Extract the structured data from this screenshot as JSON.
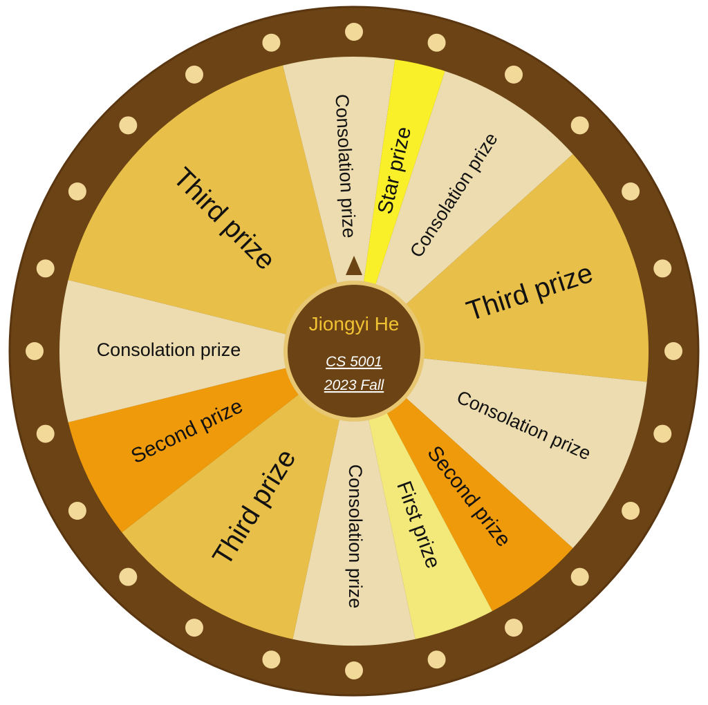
{
  "wheel": {
    "colors": {
      "rim": "#6b4315",
      "rim_edge": "#5a3610",
      "bulb": "#f2d99a",
      "hub": "#6b4315",
      "hub_ring": "#e8c772",
      "hub_name": "#f1c232",
      "hub_sub": "#ffffff",
      "pointer": "#6b4315",
      "label_text": "#111111"
    },
    "segments": [
      {
        "label": "Consolation prize",
        "color": "#ecdcb0",
        "icon": "none",
        "text_size": "small"
      },
      {
        "label": "Star prize",
        "color": "#f9f02a",
        "icon": "none",
        "text_size": "medium"
      },
      {
        "label": "Consolation prize",
        "color": "#ecdcb0",
        "icon": "none",
        "text_size": "small"
      },
      {
        "label": "Third prize",
        "color": "#e8bf48",
        "icon": "none",
        "text_size": "large"
      },
      {
        "label": "Consolation prize",
        "color": "#ecdcb0",
        "icon": "none",
        "text_size": "small"
      },
      {
        "label": "Second prize",
        "color": "#ef9a0a",
        "icon": "none",
        "text_size": "medium"
      },
      {
        "label": "First prize",
        "color": "#f2e97a",
        "icon": "none",
        "text_size": "medium"
      },
      {
        "label": "Consolation prize",
        "color": "#ecdcb0",
        "icon": "none",
        "text_size": "small"
      },
      {
        "label": "Third prize",
        "color": "#e8bf48",
        "icon": "none",
        "text_size": "large"
      },
      {
        "label": "Second prize",
        "color": "#ef9a0a",
        "icon": "none",
        "text_size": "medium"
      },
      {
        "label": "Consolation prize",
        "color": "#ecdcb0",
        "icon": "none",
        "text_size": "small"
      },
      {
        "label": "Third prize",
        "color": "#e8bf48",
        "icon": "none",
        "text_size": "large"
      }
    ],
    "hub": {
      "name": "Jiongyi He",
      "course": "CS 5001",
      "term": "2023 Fall"
    },
    "pointer_icon": "triangle-pointer-icon"
  }
}
